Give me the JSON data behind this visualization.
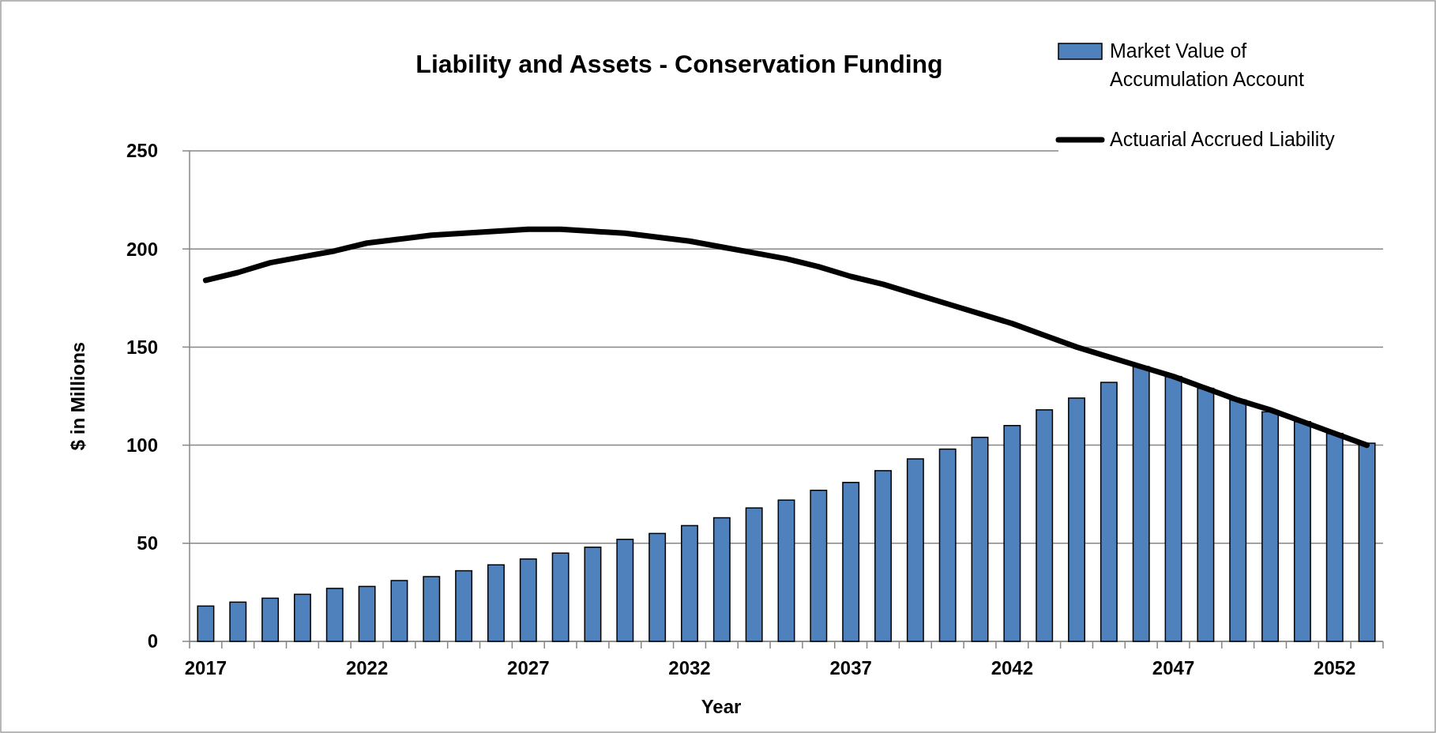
{
  "chart_data": {
    "type": "bar",
    "title": "Liability and Assets - Conservation Funding",
    "xlabel": "Year",
    "ylabel": "$ in Millions",
    "categories": [
      "2017",
      null,
      null,
      null,
      null,
      "2022",
      null,
      null,
      null,
      null,
      "2027",
      null,
      null,
      null,
      null,
      "2032",
      null,
      null,
      null,
      null,
      "2037",
      null,
      null,
      null,
      null,
      "2042",
      null,
      null,
      null,
      null,
      "2047",
      null,
      null,
      null,
      null,
      "2052",
      null
    ],
    "series": [
      {
        "name": "Market Value of Accumulation Account",
        "color": "#4f81bd",
        "values": [
          18,
          20,
          22,
          24,
          27,
          28,
          31,
          33,
          36,
          39,
          42,
          45,
          48,
          52,
          55,
          59,
          63,
          68,
          72,
          77,
          81,
          87,
          93,
          98,
          104,
          110,
          118,
          124,
          132,
          140,
          135,
          129,
          123,
          117,
          112,
          106,
          101
        ]
      },
      {
        "name": "Actuarial Accrued Liability",
        "type": "line",
        "color": "#000000",
        "values": [
          184,
          188,
          193,
          196,
          199,
          203,
          205,
          207,
          208,
          209,
          210,
          210,
          209,
          208,
          206,
          204,
          201,
          198,
          195,
          191,
          186,
          182,
          177,
          172,
          167,
          162,
          156,
          150,
          145,
          140,
          135,
          129,
          123,
          118,
          112,
          106,
          100
        ]
      }
    ],
    "ylim": [
      0,
      250
    ],
    "yticks": [
      0,
      50,
      100,
      150,
      200,
      250
    ],
    "grid": "y",
    "legend": "top right",
    "marker": "none",
    "line_style": "solid"
  }
}
